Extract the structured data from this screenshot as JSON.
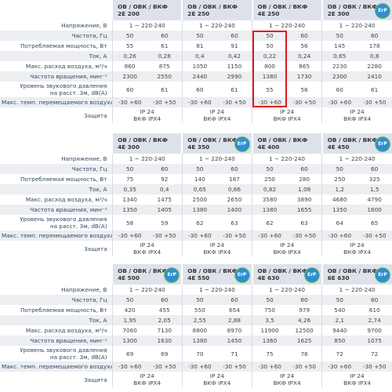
{
  "erp_label": "ErP",
  "tables": [
    {
      "models": [
        {
          "lines": [
            "ОВ / ОВК / ВКФ",
            "2Е 200"
          ],
          "erp": false
        },
        {
          "lines": [
            "ОВ / ОВК / ВКФ",
            "2Е 250"
          ],
          "erp": false
        },
        {
          "lines": [
            "ОВ / ОВК / ВКФ",
            "4Е 250"
          ],
          "erp": false
        },
        {
          "lines": [
            "ОВ / ОВК / ВКФ",
            "2Е 300"
          ],
          "erp": true
        }
      ],
      "rows": [
        {
          "label": [
            "Напряжение, В"
          ],
          "cells": [
            [
              "1 ~ 220-240"
            ],
            [
              "1 ~ 220-240"
            ],
            [
              "1 ~ 220-240"
            ],
            [
              "1 ~ 220-240"
            ]
          ]
        },
        {
          "label": [
            "Частота, Гц"
          ],
          "cells": [
            [
              "50"
            ],
            [
              "60"
            ],
            [
              "50"
            ],
            [
              "60"
            ],
            [
              "50"
            ],
            [
              "60"
            ],
            [
              "50"
            ],
            [
              "60"
            ]
          ]
        },
        {
          "label": [
            "Потребляемая мощность, Вт"
          ],
          "cells": [
            [
              "55"
            ],
            [
              "61"
            ],
            [
              "81"
            ],
            [
              "91"
            ],
            [
              "50"
            ],
            [
              "56"
            ],
            [
              "145"
            ],
            [
              "178"
            ]
          ]
        },
        {
          "label": [
            "Ток, А"
          ],
          "cells": [
            [
              "0,26"
            ],
            [
              "0,28"
            ],
            [
              "0,4"
            ],
            [
              "0,42"
            ],
            [
              "0,22"
            ],
            [
              "0,24"
            ],
            [
              "0,65"
            ],
            [
              "0,8"
            ]
          ]
        },
        {
          "label": [
            "Макс. расход воздуха, м³/ч"
          ],
          "cells": [
            [
              "860"
            ],
            [
              "875"
            ],
            [
              "1050"
            ],
            [
              "1150"
            ],
            [
              "800"
            ],
            [
              "865"
            ],
            [
              "2230"
            ],
            [
              "2280"
            ]
          ]
        },
        {
          "label": [
            "Частота вращения, мин⁻¹"
          ],
          "cells": [
            [
              "2300"
            ],
            [
              "2550"
            ],
            [
              "2440"
            ],
            [
              "2990"
            ],
            [
              "1380"
            ],
            [
              "1730"
            ],
            [
              "2300"
            ],
            [
              "2410"
            ]
          ]
        },
        {
          "label": [
            "Уровень звукового давления",
            "на расст. 3м, dB(A)"
          ],
          "cells": [
            [
              "60"
            ],
            [
              "61"
            ],
            [
              "60"
            ],
            [
              "61"
            ],
            [
              "55"
            ],
            [
              "56"
            ],
            [
              "60"
            ],
            [
              "61"
            ]
          ]
        },
        {
          "label": [
            "Макс. темп. перемещаемого воздуха, °С"
          ],
          "cells": [
            [
              "-30 +60"
            ],
            [
              "-30 +50"
            ],
            [
              "-30 +60"
            ],
            [
              "-30 +50"
            ],
            [
              "-30 +60"
            ],
            [
              "-30 +50"
            ],
            [
              "-30 +60"
            ],
            [
              "-30 +50"
            ]
          ]
        },
        {
          "label": [
            "Защита"
          ],
          "cells": [
            [
              "IP 24",
              "ВКФ IPX4"
            ],
            [
              "IP 24",
              "ВКФ IPX4"
            ],
            [
              "IP 24",
              "ВКФ IPX4"
            ],
            [
              "IP 24",
              "ВКФ IPX4"
            ]
          ]
        }
      ]
    },
    {
      "models": [
        {
          "lines": [
            "ОВ / ОВК / ВКФ",
            "4Е 300"
          ],
          "erp": false
        },
        {
          "lines": [
            "ОВ / ОВК / ВКФ",
            "4Е 350"
          ],
          "erp": true
        },
        {
          "lines": [
            "ОВ / ОВК / ВКФ",
            "4Е 400"
          ],
          "erp": false
        },
        {
          "lines": [
            "ОВ / ОВК / ВКФ",
            "4Е 450"
          ],
          "erp": true
        }
      ],
      "rows": [
        {
          "label": [
            "Напряжение, В"
          ],
          "cells": [
            [
              "1 ~ 220-240"
            ],
            [
              "1 ~ 220-240"
            ],
            [
              "1 ~ 220-240"
            ],
            [
              "1 ~ 220-240"
            ]
          ]
        },
        {
          "label": [
            "Частота, Гц"
          ],
          "cells": [
            [
              "50"
            ],
            [
              "60"
            ],
            [
              "50"
            ],
            [
              "60"
            ],
            [
              "50"
            ],
            [
              "60"
            ],
            [
              "50"
            ],
            [
              "60"
            ]
          ]
        },
        {
          "label": [
            "Потребляемая мощность, Вт"
          ],
          "cells": [
            [
              "75"
            ],
            [
              "92"
            ],
            [
              "140"
            ],
            [
              "187"
            ],
            [
              "250"
            ],
            [
              "280"
            ],
            [
              "250"
            ],
            [
              "325"
            ]
          ]
        },
        {
          "label": [
            "Ток, А"
          ],
          "cells": [
            [
              "0,35"
            ],
            [
              "0,4"
            ],
            [
              "0,65"
            ],
            [
              "0,66"
            ],
            [
              "0,82"
            ],
            [
              "1,08"
            ],
            [
              "1,2"
            ],
            [
              "1,5"
            ]
          ]
        },
        {
          "label": [
            "Макс. расход воздуха, м³/ч"
          ],
          "cells": [
            [
              "1340"
            ],
            [
              "1475"
            ],
            [
              "2500"
            ],
            [
              "2650"
            ],
            [
              "3580"
            ],
            [
              "3890"
            ],
            [
              "4680"
            ],
            [
              "4790"
            ]
          ]
        },
        {
          "label": [
            "Частота вращения, мин⁻¹"
          ],
          "cells": [
            [
              "1350"
            ],
            [
              "1405"
            ],
            [
              "1380"
            ],
            [
              "1400"
            ],
            [
              "1380"
            ],
            [
              "1655"
            ],
            [
              "1350"
            ],
            [
              "1600"
            ]
          ]
        },
        {
          "label": [
            "Уровень звукового давления",
            "на расст. 3м, dB(A)"
          ],
          "cells": [
            [
              "58"
            ],
            [
              "59"
            ],
            [
              "62"
            ],
            [
              "63"
            ],
            [
              "62"
            ],
            [
              "63"
            ],
            [
              "64"
            ],
            [
              "65"
            ]
          ]
        },
        {
          "label": [
            "Макс. темп. перемещаемого воздуха, °С"
          ],
          "cells": [
            [
              "-30 +60"
            ],
            [
              "-30 +50"
            ],
            [
              "-30 +60"
            ],
            [
              "-30 +50"
            ],
            [
              "-30 +60"
            ],
            [
              "-30 +50"
            ],
            [
              "-30 +60"
            ],
            [
              "-30 +50"
            ]
          ]
        },
        {
          "label": [
            "Защита"
          ],
          "cells": [
            [
              "IP 24",
              "ВКФ IPX4"
            ],
            [
              "IP 24",
              "ВКФ IPX4"
            ],
            [
              "IP 24",
              "ВКФ IPX4"
            ],
            [
              "IP 24",
              "ВКФ IPX4"
            ]
          ]
        }
      ]
    },
    {
      "models": [
        {
          "lines": [
            "ОВ / ОВК / ВКФ",
            "4Е 500"
          ],
          "erp": true
        },
        {
          "lines": [
            "ОВ / ОВК / ВКФ",
            "4Е 550"
          ],
          "erp": true
        },
        {
          "lines": [
            "ОВ / ОВК / ВКФ",
            "4Е 630"
          ],
          "erp": true
        },
        {
          "lines": [
            "ОВ / ОВК / ВКФ",
            "6Е 630"
          ],
          "erp": true
        }
      ],
      "rows": [
        {
          "label": [
            "Напряжение, В"
          ],
          "cells": [
            [
              "1 ~ 220-240"
            ],
            [
              "1 ~ 220-240"
            ],
            [
              "1 ~ 220-240"
            ],
            [
              "1 ~ 220-240"
            ]
          ]
        },
        {
          "label": [
            "Частота, Гц"
          ],
          "cells": [
            [
              "50"
            ],
            [
              "60"
            ],
            [
              "50"
            ],
            [
              "60"
            ],
            [
              "50"
            ],
            [
              "60"
            ],
            [
              "50"
            ],
            [
              "60"
            ]
          ]
        },
        {
          "label": [
            "Потребляемая мощность, Вт"
          ],
          "cells": [
            [
              "420"
            ],
            [
              "455"
            ],
            [
              "550"
            ],
            [
              "654"
            ],
            [
              "750"
            ],
            [
              "979"
            ],
            [
              "540"
            ],
            [
              "610"
            ]
          ]
        },
        {
          "label": [
            "Ток, А"
          ],
          "cells": [
            [
              "1,95"
            ],
            [
              "2,05"
            ],
            [
              "2,55"
            ],
            [
              "2,88"
            ],
            [
              "3,5"
            ],
            [
              "4,26"
            ],
            [
              "2,1"
            ],
            [
              "2,74"
            ]
          ]
        },
        {
          "label": [
            "Макс. расход воздуха, м³/ч"
          ],
          "cells": [
            [
              "7060"
            ],
            [
              "7130"
            ],
            [
              "8800"
            ],
            [
              "8970"
            ],
            [
              "11900"
            ],
            [
              "12500"
            ],
            [
              "9440"
            ],
            [
              "9700"
            ]
          ]
        },
        {
          "label": [
            "Частота вращения, мин⁻¹"
          ],
          "cells": [
            [
              "1300"
            ],
            [
              "1630"
            ],
            [
              "1380"
            ],
            [
              "1450"
            ],
            [
              "1360"
            ],
            [
              "1625"
            ],
            [
              "850"
            ],
            [
              "1075"
            ]
          ]
        },
        {
          "label": [
            "Уровень звукового давления",
            "на расст. 3м, dB(A)"
          ],
          "cells": [
            [
              "69"
            ],
            [
              "69"
            ],
            [
              "70"
            ],
            [
              "71"
            ],
            [
              "75"
            ],
            [
              "76"
            ],
            [
              "72"
            ],
            [
              "72"
            ]
          ]
        },
        {
          "label": [
            "Макс. темп. перемещаемого воздуха, °С"
          ],
          "cells": [
            [
              "-30 +60"
            ],
            [
              "-30 +50"
            ],
            [
              "-30 +60"
            ],
            [
              "-30 +50"
            ],
            [
              "-30 +60"
            ],
            [
              "-30 +50"
            ],
            [
              "-30 +60"
            ],
            [
              "-30 +50"
            ]
          ]
        },
        {
          "label": [
            "Защита"
          ],
          "cells": [
            [
              "IP 24",
              "ВКФ IPX4"
            ],
            [
              "IP 24",
              "ВКФ IPX4"
            ],
            [
              "IP 24",
              "ВКФ IPX4"
            ],
            [
              "IP 24",
              "ВКФ IPX4"
            ]
          ]
        }
      ]
    }
  ]
}
